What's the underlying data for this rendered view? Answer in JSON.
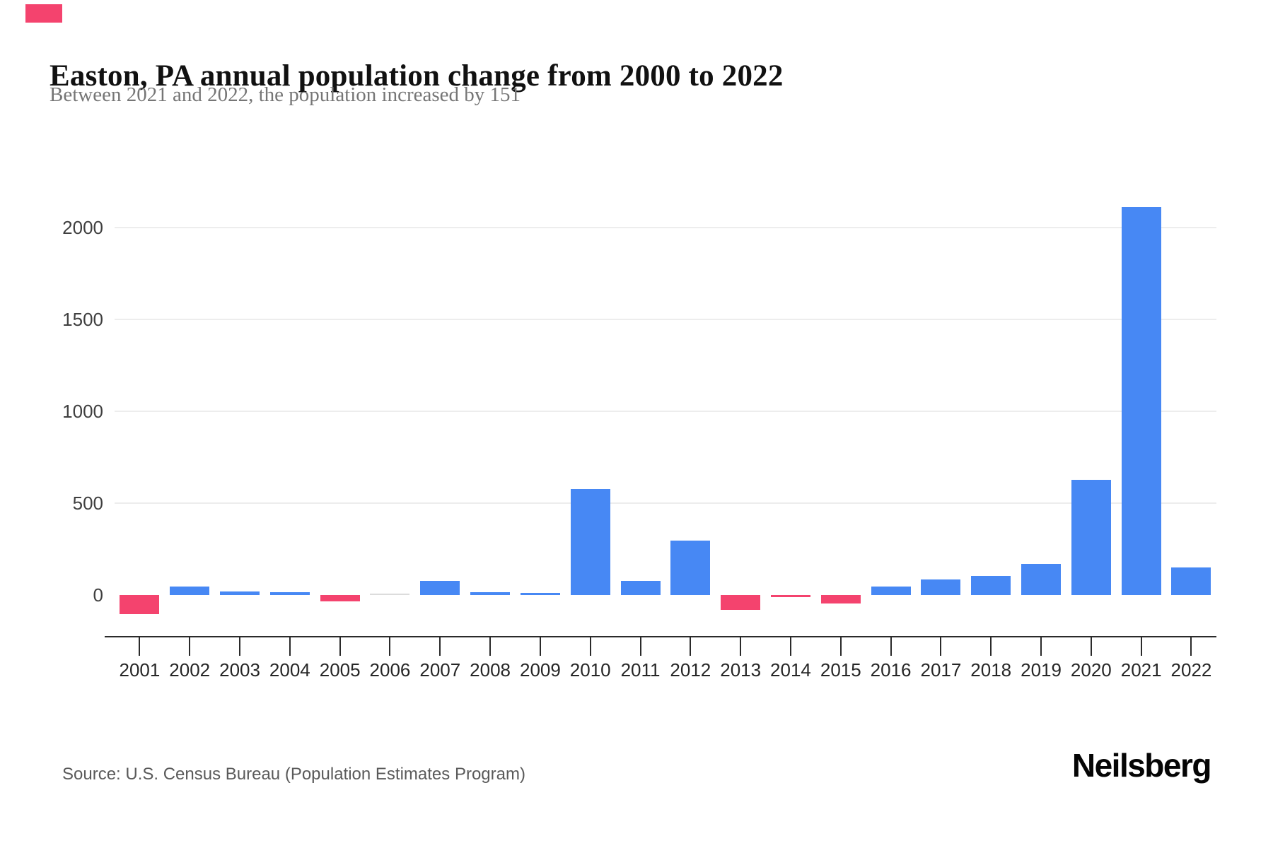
{
  "page": {
    "background": "#ffffff"
  },
  "header": {
    "title": "Easton, PA annual population change from 2000 to 2022",
    "subtitle": "Between 2021 and 2022, the population increased by 151"
  },
  "footer": {
    "source": "Source: U.S. Census Bureau (Population Estimates Program)",
    "brand": "Neilsberg"
  },
  "chart_data": {
    "type": "bar",
    "title": "Easton, PA annual population change from 2000 to 2022",
    "subtitle": "Between 2021 and 2022, the population increased by 151",
    "categories": [
      "2001",
      "2002",
      "2003",
      "2004",
      "2005",
      "2006",
      "2007",
      "2008",
      "2009",
      "2010",
      "2011",
      "2012",
      "2013",
      "2014",
      "2015",
      "2016",
      "2017",
      "2018",
      "2019",
      "2020",
      "2021",
      "2022"
    ],
    "values": [
      -105,
      45,
      20,
      15,
      -35,
      0,
      75,
      15,
      10,
      575,
      75,
      295,
      -80,
      -10,
      -45,
      45,
      85,
      105,
      170,
      625,
      2110,
      151
    ],
    "xlabel": "",
    "ylabel": "",
    "yticks": [
      0,
      500,
      1000,
      1500,
      2000
    ],
    "ylim": [
      -150,
      2300
    ],
    "grid": "horizontal",
    "legend": "none",
    "colors": {
      "positive": "#4788f4",
      "negative": "#f4436e",
      "zero": "#dcdcdc"
    }
  }
}
